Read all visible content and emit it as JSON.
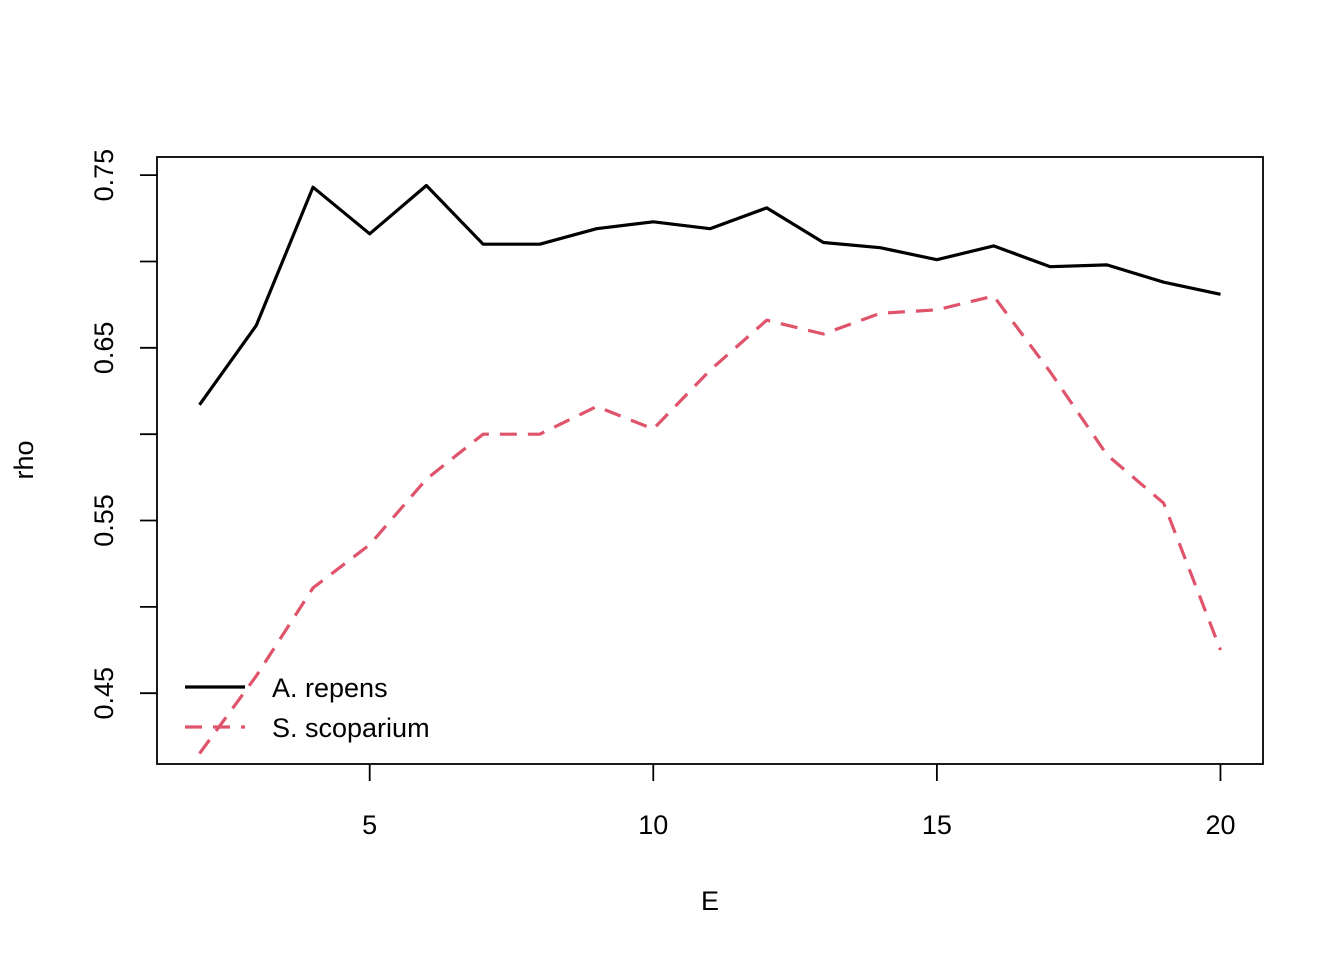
{
  "chart_data": {
    "type": "line",
    "title": "",
    "xlabel": "E",
    "ylabel": "rho",
    "xlim": [
      1.25,
      20.75
    ],
    "ylim": [
      0.409,
      0.7605
    ],
    "x_ticks": [
      5,
      10,
      15,
      20
    ],
    "x_tick_labels": [
      "5",
      "10",
      "15",
      "20"
    ],
    "y_ticks": [
      0.45,
      0.5,
      0.55,
      0.6,
      0.65,
      0.7,
      0.75
    ],
    "y_tick_labels": [
      "0.45",
      "",
      "0.55",
      "",
      "0.65",
      "",
      "0.75"
    ],
    "grid": false,
    "legend_position": "bottom-left",
    "x": [
      2,
      3,
      4,
      5,
      6,
      7,
      8,
      9,
      10,
      11,
      12,
      13,
      14,
      15,
      16,
      17,
      18,
      19,
      20
    ],
    "series": [
      {
        "name": "A. repens",
        "color": "#000000",
        "line_style": "solid",
        "values": [
          0.617,
          0.663,
          0.743,
          0.716,
          0.744,
          0.71,
          0.71,
          0.719,
          0.723,
          0.719,
          0.731,
          0.711,
          0.708,
          0.701,
          0.709,
          0.697,
          0.698,
          0.688,
          0.681
        ]
      },
      {
        "name": "S. scoparium",
        "color": "#DF536B",
        "line_style": "dashed",
        "values": [
          0.415,
          0.46,
          0.511,
          0.536,
          0.574,
          0.6,
          0.6,
          0.616,
          0.603,
          0.637,
          0.666,
          0.658,
          0.67,
          0.672,
          0.68,
          0.636,
          0.588,
          0.56,
          0.475
        ]
      }
    ]
  }
}
